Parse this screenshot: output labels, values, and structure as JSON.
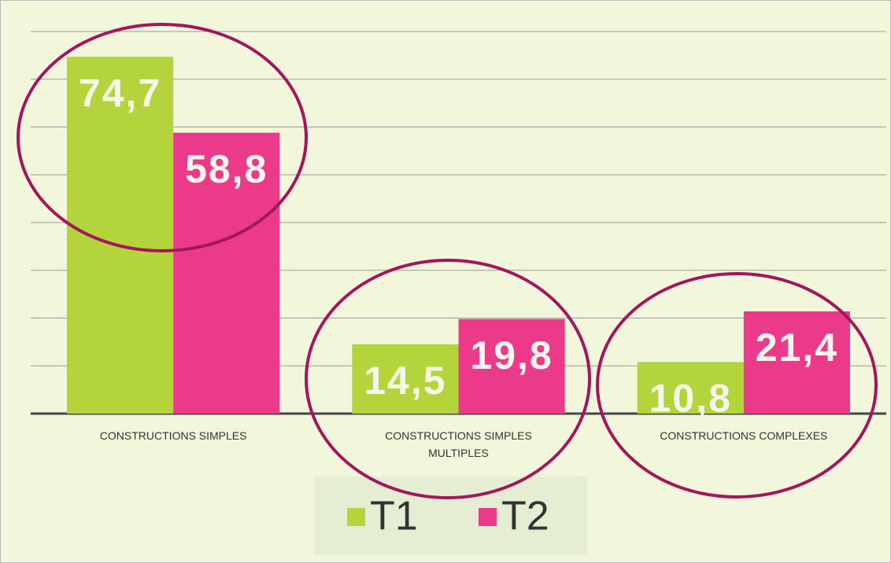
{
  "chart_data": {
    "type": "bar",
    "categories": [
      "CONSTRUCTIONS SIMPLES",
      "CONSTRUCTIONS SIMPLES MULTIPLES",
      "CONSTRUCTIONS COMPLEXES"
    ],
    "series": [
      {
        "name": "T1",
        "color": "#b3d43a",
        "values": [
          74.7,
          14.5,
          10.8
        ],
        "value_labels": [
          "74,7",
          "14,5",
          "10,8"
        ]
      },
      {
        "name": "T2",
        "color": "#ec3a8b",
        "values": [
          58.8,
          19.8,
          21.4
        ],
        "value_labels": [
          "58,8",
          "19,8",
          "21,4"
        ]
      }
    ],
    "ylim": [
      0,
      80
    ],
    "yticks": [
      0,
      10,
      20,
      30,
      40,
      50,
      60,
      70,
      80
    ],
    "grid": true
  }
}
